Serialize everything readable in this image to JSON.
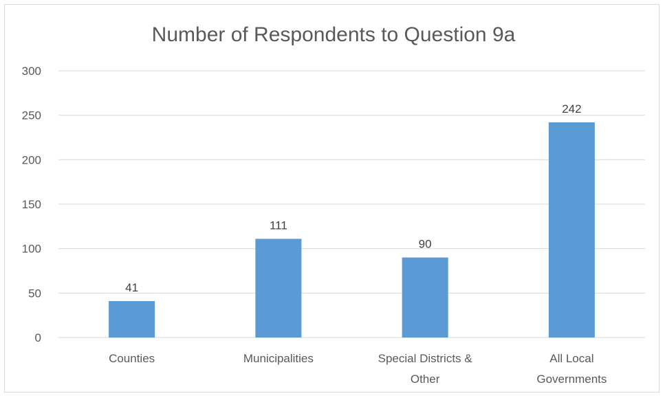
{
  "chart_data": {
    "type": "bar",
    "title": "Number of Respondents to Question 9a",
    "categories": [
      [
        "Counties"
      ],
      [
        "Municipalities"
      ],
      [
        "Special Districts &",
        "Other"
      ],
      [
        "All Local",
        "Governments"
      ]
    ],
    "values": [
      41,
      111,
      90,
      242
    ],
    "data_labels": [
      "41",
      "111",
      "90",
      "242"
    ],
    "xlabel": "",
    "ylabel": "",
    "ylim": [
      0,
      300
    ],
    "yticks": [
      0,
      50,
      100,
      150,
      200,
      250,
      300
    ],
    "grid": true,
    "legend": "none",
    "colors": {
      "bar": "#5b9bd5",
      "grid": "#d9d9d9",
      "axis_text": "#595959",
      "title_text": "#595959",
      "label_text": "#404040"
    }
  }
}
